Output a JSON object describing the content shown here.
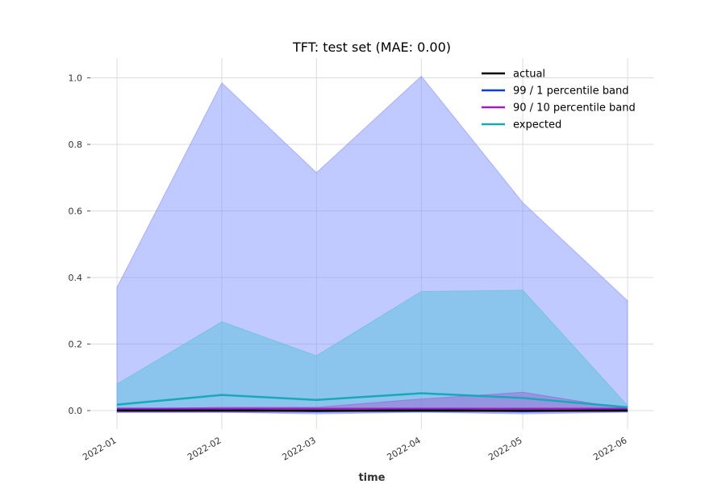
{
  "chart_data": {
    "type": "line",
    "title": "TFT: test set (MAE: 0.00)",
    "xlabel": "time",
    "ylabel": "",
    "x": [
      "2022-01",
      "2022-02",
      "2022-03",
      "2022-04",
      "2022-05",
      "2022-06"
    ],
    "x_dates": [
      "2022-01-01",
      "2022-02-01",
      "2022-03-01",
      "2022-04-01",
      "2022-05-01",
      "2022-06-01"
    ],
    "yticks": [
      "0.0",
      "0.2",
      "0.4",
      "0.6",
      "0.8",
      "1.0"
    ],
    "ylim": [
      -0.06,
      1.06
    ],
    "grid": true,
    "legend_position": "top-right",
    "series": [
      {
        "name": "actual",
        "type": "line",
        "color": "#000000",
        "values": [
          0.0,
          0.0,
          0.0,
          0.0,
          0.0,
          0.0
        ]
      },
      {
        "name": "99 / 1 percentile band",
        "type": "band",
        "color": "#0a3de6",
        "lower": [
          -0.005,
          -0.005,
          -0.01,
          -0.005,
          -0.01,
          -0.005
        ],
        "upper": [
          0.37,
          0.985,
          0.715,
          1.005,
          0.625,
          0.33
        ]
      },
      {
        "name": "90 / 10 percentile band",
        "type": "band",
        "color": "#a51bbf",
        "lower": [
          -0.005,
          -0.005,
          -0.005,
          -0.003,
          -0.005,
          -0.003
        ],
        "upper": [
          0.005,
          0.01,
          0.01,
          0.035,
          0.055,
          0.005
        ]
      },
      {
        "name": "expected",
        "type": "line",
        "color": "#18a9b8",
        "values": [
          0.018,
          0.047,
          0.032,
          0.052,
          0.038,
          0.01
        ],
        "band_lower": [
          -0.005,
          -0.005,
          -0.005,
          -0.005,
          -0.005,
          -0.003
        ],
        "band_upper": [
          0.08,
          0.267,
          0.165,
          0.358,
          0.362,
          0.015
        ]
      }
    ]
  }
}
